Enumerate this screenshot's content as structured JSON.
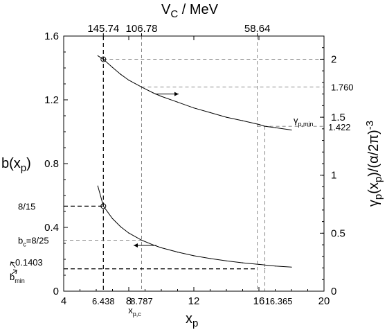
{
  "chart_data": {
    "type": "line",
    "x_axis": {
      "label": "x",
      "label_sub": "p",
      "range": [
        4,
        20
      ],
      "ticks": [
        "4",
        "8",
        "12",
        "16",
        "20"
      ]
    },
    "left_axis": {
      "label_main": "b(x",
      "label_sub": "p",
      "label_close": ")",
      "range": [
        0,
        1.6
      ],
      "ticks": [
        "0",
        "0.4",
        "0.8",
        "1.2",
        "1.6"
      ]
    },
    "right_axis": {
      "label_main": "γ",
      "label_sub1": "p",
      "label_mid": "(x",
      "label_sub2": "p",
      "label_tail": ")/(α/2π)",
      "label_sup": "-3",
      "range": [
        0,
        2.2
      ],
      "ticks": [
        "0",
        "0.5",
        "1",
        "1.5",
        "2"
      ],
      "minor_step": 0.1
    },
    "top_axis": {
      "label_main": "V",
      "label_sub": "C",
      "label_tail": " / MeV",
      "ticks": [
        "145.74",
        "106.78",
        "58.64"
      ],
      "tick_x": [
        6.438,
        8.787,
        15.9
      ]
    },
    "series": [
      {
        "axis": "right",
        "x": [
          6.1,
          6.438,
          7,
          7.5,
          8,
          8.787,
          9.5,
          10,
          11,
          12,
          13,
          14,
          15,
          16,
          16.365,
          17,
          18
        ],
        "values": [
          2.03,
          2.0,
          1.93,
          1.87,
          1.82,
          1.76,
          1.71,
          1.68,
          1.63,
          1.58,
          1.54,
          1.5,
          1.47,
          1.438,
          1.422,
          1.41,
          1.39
        ]
      },
      {
        "axis": "left",
        "x": [
          6.1,
          6.438,
          7,
          7.5,
          8,
          8.787,
          9.5,
          10,
          11,
          12,
          13,
          14,
          15,
          16,
          16.365,
          17,
          18
        ],
        "values": [
          0.66,
          0.5333,
          0.455,
          0.404,
          0.365,
          0.32,
          0.29,
          0.272,
          0.245,
          0.222,
          0.205,
          0.19,
          0.178,
          0.168,
          0.1403,
          0.158,
          0.151
        ]
      }
    ],
    "annotations": {
      "left_labels": [
        {
          "text": "8/15",
          "y": 0.5333
        },
        {
          "text_main": "b",
          "text_sub": "c",
          "text_tail": "=8/25",
          "y": 0.32
        },
        {
          "text": "0.1403",
          "y": 0.1403
        }
      ],
      "bmin": {
        "main": "b",
        "sub": "min"
      },
      "right_labels": [
        {
          "text": "1.760",
          "y": 1.76
        },
        {
          "text": "1.422",
          "y": 1.422
        }
      ],
      "gamma_min": {
        "main": "γ",
        "sub": "p,min"
      },
      "x_labels": [
        {
          "text": "6.438",
          "x": 6.438
        },
        {
          "text": "8.787",
          "x": 8.787
        },
        {
          "text": "16.365",
          "x": 16.365
        }
      ],
      "xpc": {
        "main": "x",
        "sub": "p,c",
        "x": 8.787
      }
    }
  }
}
